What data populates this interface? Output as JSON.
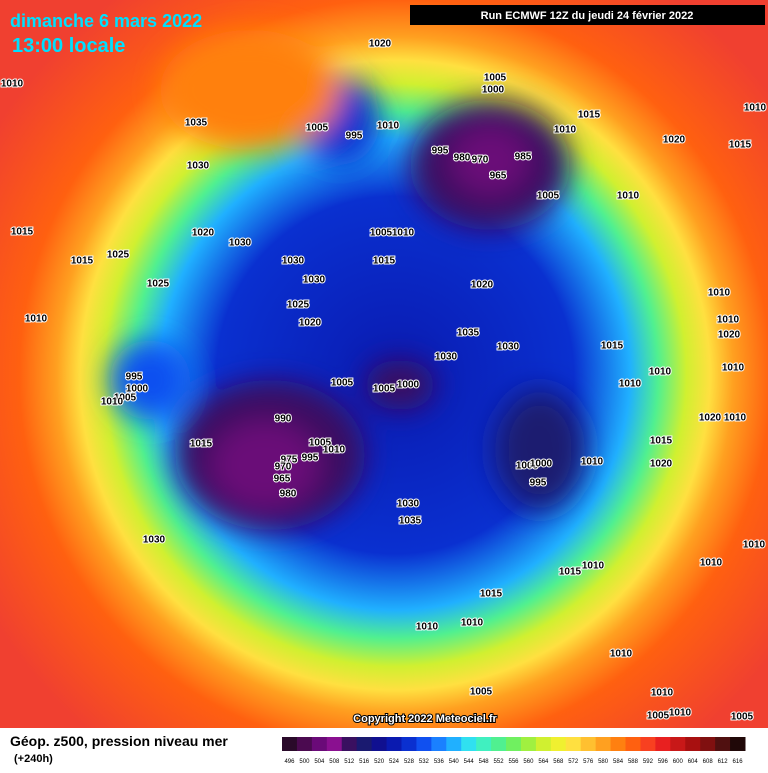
{
  "header": {
    "date": "dimanche 6 mars 2022",
    "time": "13:00 locale",
    "run": "Run ECMWF 12Z du jeudi 24 février 2022"
  },
  "footer": {
    "title": "Géop. z500, pression niveau mer",
    "lead": "(+240h)",
    "copyright": "Copyright 2022 Meteociel.fr"
  },
  "legend": {
    "ticks": [
      496,
      500,
      504,
      508,
      512,
      516,
      520,
      524,
      528,
      532,
      536,
      540,
      544,
      548,
      552,
      556,
      560,
      564,
      568,
      572,
      576,
      580,
      584,
      588,
      592,
      596,
      600,
      604,
      608,
      612,
      616
    ],
    "colors": [
      "#2a0a2a",
      "#4b0a50",
      "#6a0a78",
      "#8a1090",
      "#3a1060",
      "#1a1a70",
      "#101090",
      "#0a1ab0",
      "#0a30d0",
      "#1050f0",
      "#1a80ff",
      "#20b0ff",
      "#30e0f0",
      "#40f0c0",
      "#50f090",
      "#70f060",
      "#a0f040",
      "#d0f030",
      "#f0f030",
      "#ffe040",
      "#ffc030",
      "#ffa020",
      "#ff8010",
      "#ff6010",
      "#f84020",
      "#e82020",
      "#c81818",
      "#a81010",
      "#801010",
      "#501010",
      "#200808"
    ]
  },
  "pressure_labels": [
    1020,
    1010,
    1005,
    1000,
    1035,
    1005,
    995,
    1010,
    1015,
    1010,
    1015,
    1010,
    995,
    980,
    970,
    985,
    965,
    1030,
    1020,
    1005,
    1010,
    1015,
    1020,
    1030,
    1005,
    1010,
    1025,
    1015,
    1015,
    1030,
    1030,
    1025,
    1020,
    1010,
    1025,
    1010,
    1020,
    1035,
    1030,
    1015,
    1030,
    1020,
    1010,
    995,
    1000,
    1005,
    1010,
    1005,
    1005,
    1000,
    1010,
    1010,
    1010,
    990,
    1015,
    1005,
    1010,
    995,
    975,
    970,
    965,
    980,
    1020,
    1010,
    1015,
    1020,
    1005,
    1000,
    995,
    1010,
    1030,
    1035,
    1030,
    1010,
    1015,
    1010,
    1010,
    1015,
    1010,
    1010,
    1010,
    1005,
    1010,
    1010,
    1005,
    1005
  ]
}
